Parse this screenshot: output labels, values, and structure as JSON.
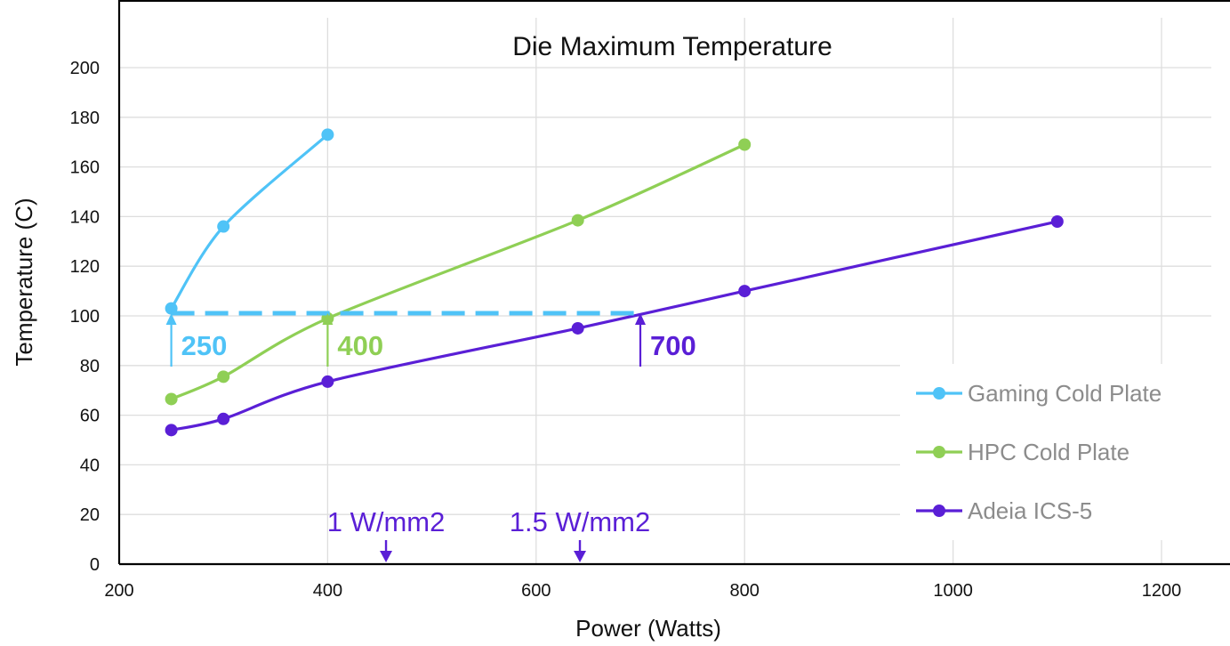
{
  "chart_data": {
    "type": "line",
    "title": "Die Maximum Temperature",
    "xlabel": "Power (Watts)",
    "ylabel": "Temperature (C)",
    "xlim": [
      200,
      1250
    ],
    "ylim": [
      0,
      200
    ],
    "x_ticks": [
      200,
      400,
      600,
      800,
      1000,
      1200
    ],
    "y_ticks": [
      0,
      20,
      40,
      60,
      80,
      100,
      120,
      140,
      160,
      180,
      200
    ],
    "grid": true,
    "legend_position": "bottom-right",
    "series": [
      {
        "name": "Gaming Cold Plate",
        "color": "#4fc3f7",
        "points": [
          [
            250,
            103
          ],
          [
            300,
            136
          ],
          [
            400,
            173
          ]
        ]
      },
      {
        "name": "HPC Cold Plate",
        "color": "#8fcf55",
        "points": [
          [
            250,
            66.5
          ],
          [
            300,
            75.5
          ],
          [
            400,
            99
          ],
          [
            640,
            138.5
          ],
          [
            800,
            169
          ]
        ]
      },
      {
        "name": "Adeia ICS-5",
        "color": "#5a1fd6",
        "points": [
          [
            250,
            54
          ],
          [
            300,
            58.5
          ],
          [
            400,
            73.5
          ],
          [
            640,
            95
          ],
          [
            800,
            110
          ],
          [
            1100,
            138
          ]
        ]
      }
    ],
    "threshold": {
      "y": 100,
      "x_from": 250,
      "x_to": 700,
      "color": "#4fc3f7"
    },
    "callouts": [
      {
        "x": 250,
        "label": "250",
        "color": "#4fc3f7"
      },
      {
        "x": 400,
        "label": "400",
        "color": "#8fcf55"
      },
      {
        "x": 700,
        "label": "700",
        "color": "#5a1fd6"
      }
    ],
    "density_markers": [
      {
        "x": 456,
        "label": "1 W/mm2",
        "color": "#5a1fd6"
      },
      {
        "x": 642,
        "label": "1.5 W/mm2",
        "color": "#5a1fd6"
      }
    ]
  }
}
